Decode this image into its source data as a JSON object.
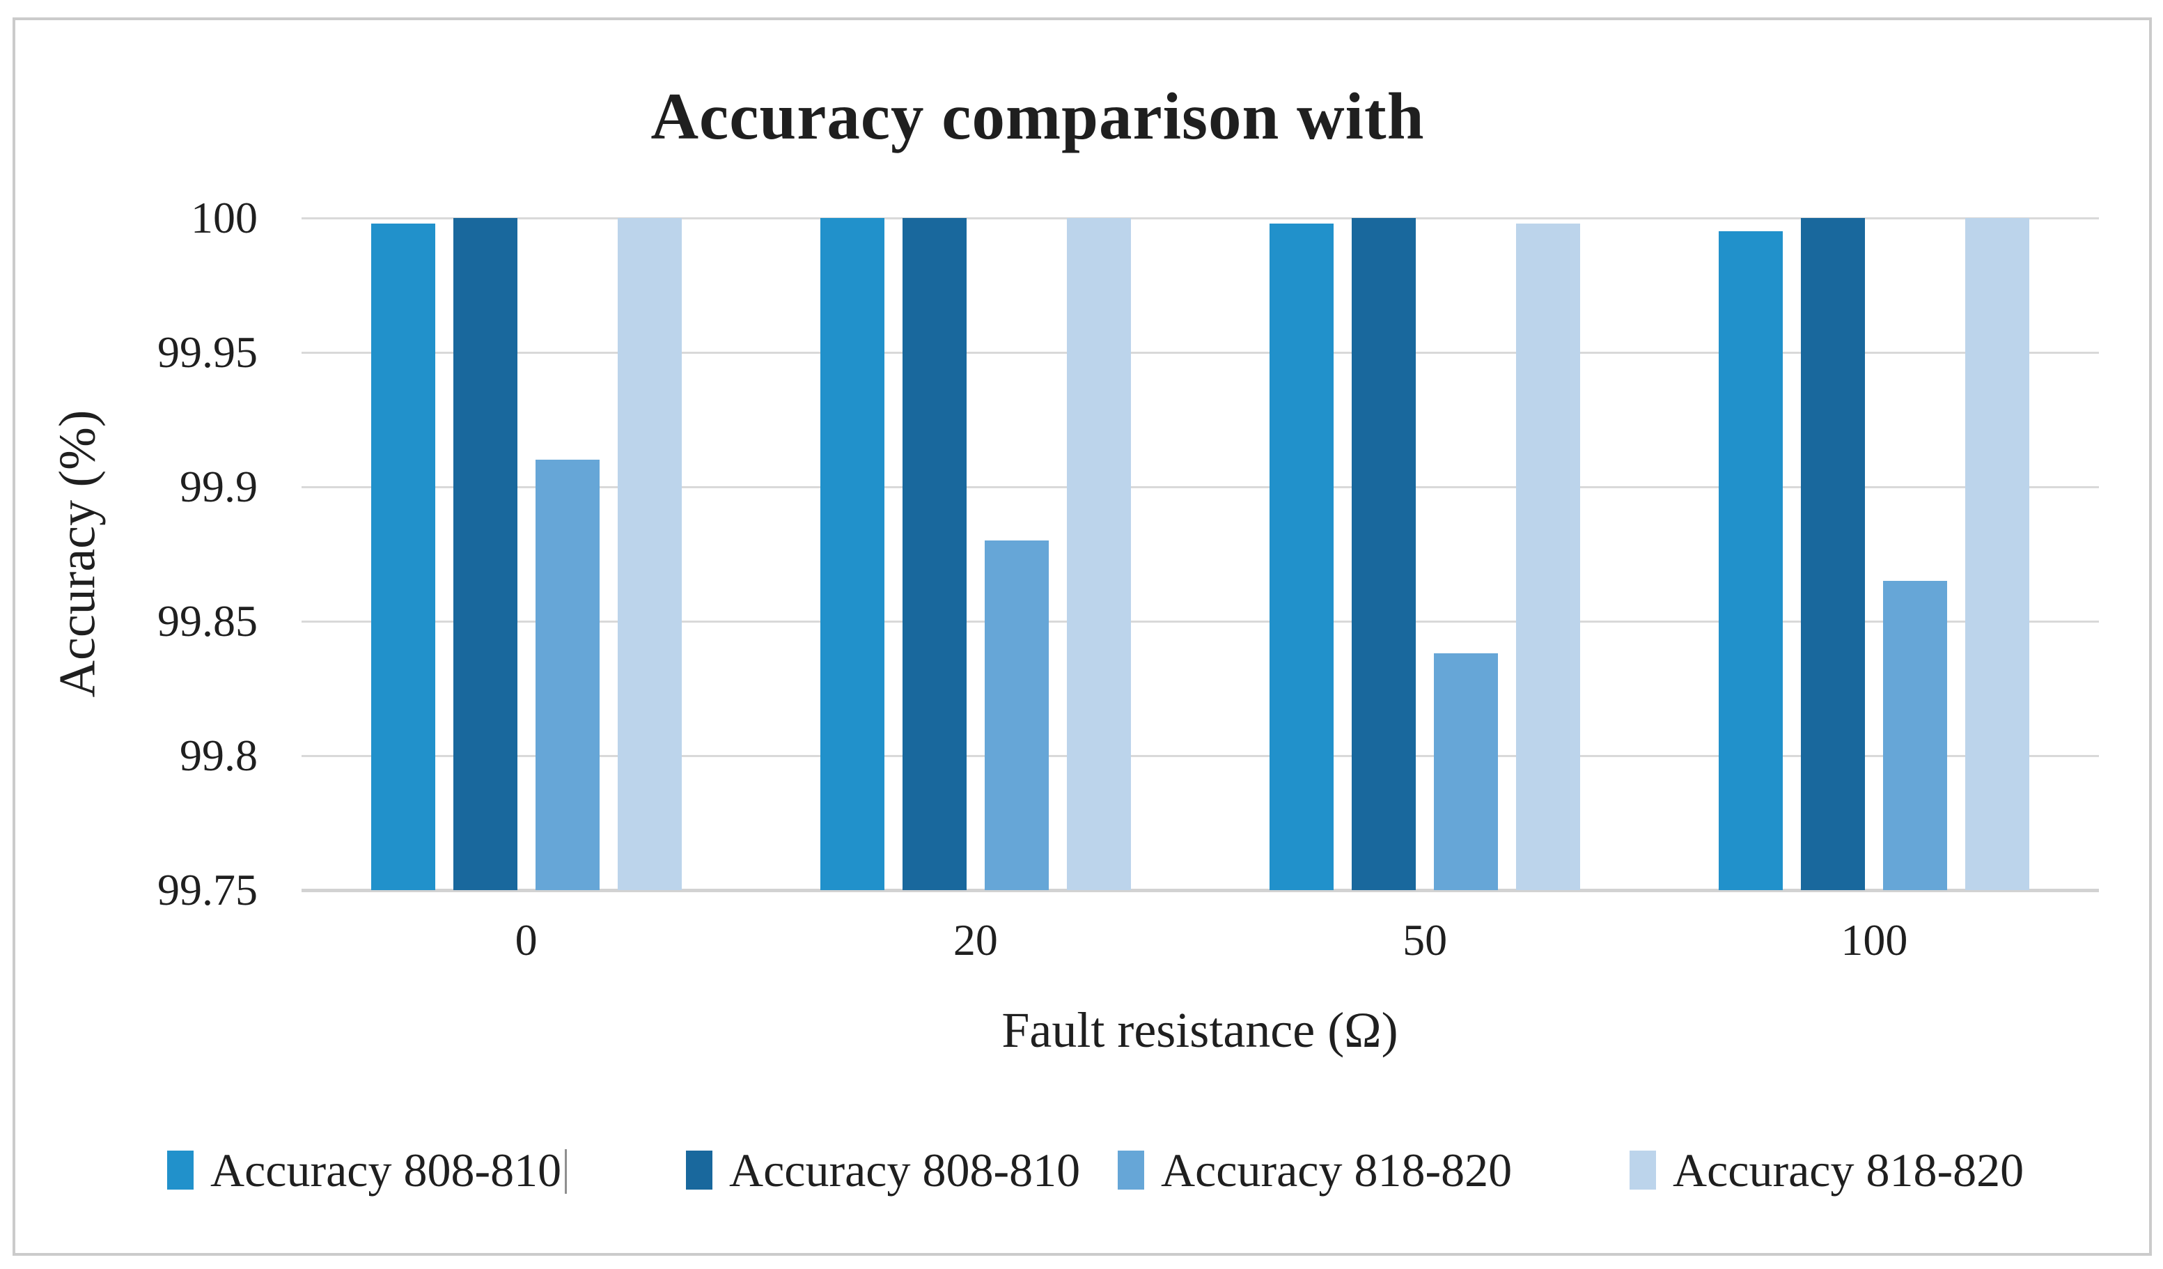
{
  "figure": {
    "border_color": "#cbcbcb",
    "background": "#ffffff"
  },
  "chart_data": {
    "type": "bar",
    "title": "Accuracy comparison with",
    "xlabel": "Fault resistance (Ω)",
    "ylabel": "Accuracy (%)",
    "categories": [
      "0",
      "20",
      "50",
      "100"
    ],
    "series": [
      {
        "name": "Accuracy 808-810",
        "color": "#2191CB",
        "values": [
          99.998,
          100,
          99.998,
          99.995
        ]
      },
      {
        "name": "Accuracy 808-810",
        "color": "#19689D",
        "values": [
          100,
          100,
          100,
          100
        ]
      },
      {
        "name": "Accuracy 818-820",
        "color": "#66A6D7",
        "values": [
          99.91,
          99.88,
          99.838,
          99.865
        ]
      },
      {
        "name": "Accuracy 818-820",
        "color": "#BCD4EB",
        "values": [
          100,
          100,
          99.998,
          100
        ]
      }
    ],
    "ylim": [
      99.75,
      100
    ],
    "yticks": [
      100,
      99.95,
      99.9,
      99.85,
      99.8,
      99.75
    ],
    "ytick_labels": [
      "100",
      "99.95",
      "99.9",
      "99.85",
      "99.8",
      "99.75"
    ],
    "grid": true,
    "gridline_color": "#d9d9d9",
    "legend_position": "bottom"
  },
  "legend": {
    "items": [
      {
        "label": "Accuracy 808-810",
        "color": "#2191CB"
      },
      {
        "label": "Accuracy 808-810",
        "color": "#19689D"
      },
      {
        "label": "Accuracy 818-820",
        "color": "#66A6D7"
      },
      {
        "label": "Accuracy 818-820",
        "color": "#BCD4EB"
      }
    ]
  }
}
